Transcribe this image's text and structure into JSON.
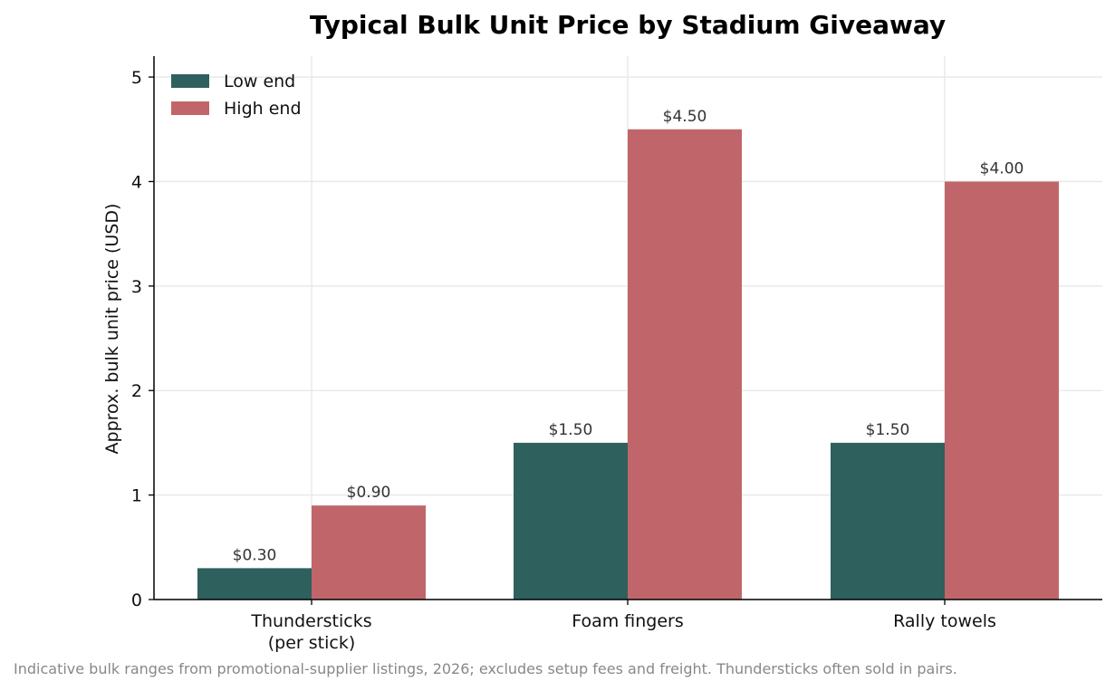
{
  "chart_data": {
    "type": "bar",
    "title": "Typical Bulk Unit Price by Stadium Giveaway",
    "ylabel": "Approx. bulk unit price (USD)",
    "xlabel": "",
    "categories": [
      [
        "Thundersticks",
        "(per stick)"
      ],
      [
        "Foam fingers"
      ],
      [
        "Rally towels"
      ]
    ],
    "series": [
      {
        "name": "Low end",
        "color": "#2e605e",
        "values": [
          0.3,
          1.5,
          1.5
        ],
        "labels": [
          "$0.30",
          "$1.50",
          "$1.50"
        ]
      },
      {
        "name": "High end",
        "color": "#c0666a",
        "values": [
          0.9,
          4.5,
          4.0
        ],
        "labels": [
          "$0.90",
          "$4.50",
          "$4.00"
        ]
      }
    ],
    "ylim": [
      0,
      5.2
    ],
    "yticks": [
      0,
      1,
      2,
      3,
      4,
      5
    ],
    "grid": true,
    "legend": "top-left",
    "footnote": "Indicative bulk ranges from promotional-supplier listings, 2026; excludes setup fees and freight. Thundersticks often sold in pairs."
  }
}
